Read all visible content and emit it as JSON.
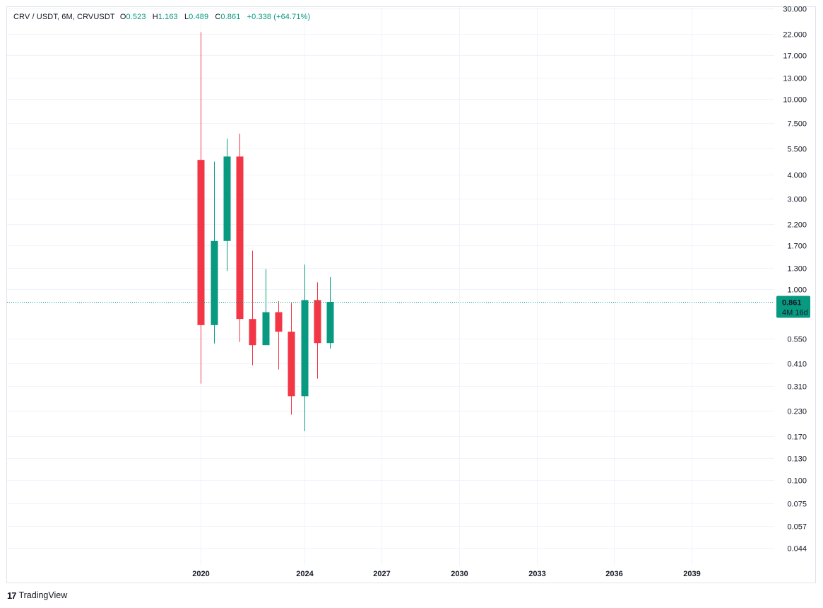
{
  "legend": {
    "symbol": "CRV / USDT, 6M, CRVUSDT",
    "o_label": "O",
    "o_value": "0.523",
    "h_label": "H",
    "h_value": "1.163",
    "l_label": "L",
    "l_value": "0.489",
    "c_label": "C",
    "c_value": "0.861",
    "change": "+0.338 (+64.71%)"
  },
  "price_tag": {
    "price": "0.861",
    "countdown": "4M 16d"
  },
  "branding": {
    "logo_mark": "17",
    "name": "TradingView"
  },
  "colors": {
    "up": "#089981",
    "down": "#f23645",
    "grid": "#f0f3fa",
    "last_line": "#089981"
  },
  "chart_data": {
    "type": "candlestick",
    "y_scale": "log",
    "y_ticks": [
      "30.000",
      "22.000",
      "17.000",
      "13.000",
      "10.000",
      "7.500",
      "5.500",
      "4.000",
      "3.000",
      "2.200",
      "1.700",
      "1.300",
      "1.000",
      "0.550",
      "0.410",
      "0.310",
      "0.230",
      "0.170",
      "0.130",
      "0.100",
      "0.075",
      "0.057",
      "0.044"
    ],
    "x_ticks": [
      "2020",
      "2024",
      "2027",
      "2030",
      "2033",
      "2036",
      "2039"
    ],
    "x_range": [
      2012.5,
      2042.2
    ],
    "y_range": [
      0.036,
      30.0
    ],
    "candles": [
      {
        "t": 2020.0,
        "o": 4.8,
        "h": 22.5,
        "l": 0.32,
        "c": 0.65
      },
      {
        "t": 2020.5,
        "o": 0.65,
        "h": 4.7,
        "l": 0.52,
        "c": 1.8
      },
      {
        "t": 2021.0,
        "o": 1.8,
        "h": 6.2,
        "l": 1.25,
        "c": 5.0
      },
      {
        "t": 2021.5,
        "o": 5.0,
        "h": 6.6,
        "l": 0.53,
        "c": 0.7
      },
      {
        "t": 2022.0,
        "o": 0.7,
        "h": 1.6,
        "l": 0.4,
        "c": 0.51
      },
      {
        "t": 2022.5,
        "o": 0.51,
        "h": 1.28,
        "l": 0.51,
        "c": 0.76
      },
      {
        "t": 2023.0,
        "o": 0.76,
        "h": 0.87,
        "l": 0.38,
        "c": 0.6
      },
      {
        "t": 2023.5,
        "o": 0.6,
        "h": 0.85,
        "l": 0.22,
        "c": 0.275
      },
      {
        "t": 2024.0,
        "o": 0.275,
        "h": 1.35,
        "l": 0.18,
        "c": 0.88
      },
      {
        "t": 2024.5,
        "o": 0.88,
        "h": 1.09,
        "l": 0.34,
        "c": 0.523
      },
      {
        "t": 2025.0,
        "o": 0.523,
        "h": 1.163,
        "l": 0.489,
        "c": 0.861
      }
    ],
    "last_price": 0.861
  }
}
